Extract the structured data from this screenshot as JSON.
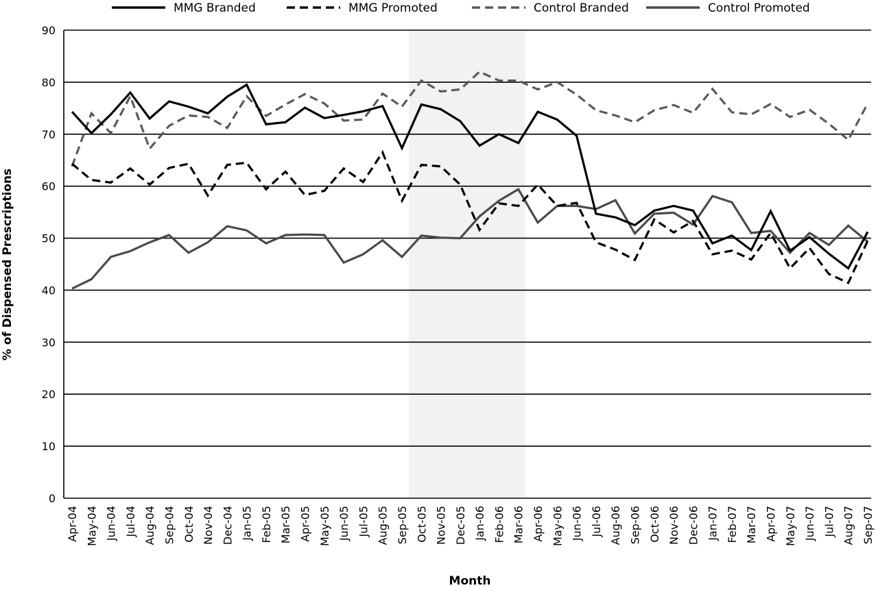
{
  "chart_data": {
    "type": "line",
    "xlabel": "Month",
    "ylabel": "% of Dispensed Prescriptions",
    "ylim": [
      0,
      90
    ],
    "yticks": [
      0,
      10,
      20,
      30,
      40,
      50,
      60,
      70,
      80,
      90
    ],
    "grid": "horizontal",
    "legend_position": "top",
    "shaded_region": {
      "from": "Sep-05",
      "to": "Mar-06",
      "color": "#f2f2f2"
    },
    "categories": [
      "Apr-04",
      "May-04",
      "Jun-04",
      "Jul-04",
      "Aug-04",
      "Sep-04",
      "Oct-04",
      "Nov-04",
      "Dec-04",
      "Jan-05",
      "Feb-05",
      "Mar-05",
      "Apr-05",
      "May-05",
      "Jun-05",
      "Jul-05",
      "Aug-05",
      "Sep-05",
      "Oct-05",
      "Nov-05",
      "Dec-05",
      "Jan-06",
      "Feb-06",
      "Mar-06",
      "Apr-06",
      "May-06",
      "Jun-06",
      "Jul-06",
      "Aug-06",
      "Sep-06",
      "Oct-06",
      "Nov-06",
      "Dec-06",
      "Jan-07",
      "Feb-07",
      "Mar-07",
      "Apr-07",
      "May-07",
      "Jun-07",
      "Jul-07",
      "Aug-07",
      "Sep-07"
    ],
    "series": [
      {
        "name": "MMG Branded",
        "color": "#000000",
        "dash": "solid",
        "values": [
          74.3,
          70.2,
          73.8,
          78.0,
          73.0,
          76.3,
          75.3,
          74.0,
          77.2,
          79.5,
          71.9,
          72.3,
          75.1,
          73.1,
          73.7,
          74.4,
          75.4,
          67.3,
          75.7,
          74.8,
          72.5,
          67.8,
          70.0,
          68.3,
          74.3,
          72.8,
          69.7,
          54.7,
          54.0,
          52.5,
          55.3,
          56.2,
          55.3,
          49.0,
          50.5,
          47.7,
          55.2,
          47.6,
          50.2,
          47.0,
          44.2,
          51.2
        ]
      },
      {
        "name": "MMG Promoted",
        "color": "#000000",
        "dash": "dashed",
        "values": [
          64.3,
          61.2,
          60.7,
          63.4,
          60.3,
          63.5,
          64.3,
          58.2,
          64.1,
          64.5,
          59.4,
          62.8,
          58.3,
          59.1,
          63.4,
          60.8,
          66.5,
          57.2,
          64.1,
          63.8,
          60.3,
          51.6,
          56.7,
          56.2,
          60.3,
          56.2,
          56.8,
          49.2,
          47.8,
          45.8,
          53.6,
          51.1,
          53.3,
          46.9,
          47.6,
          45.9,
          51.0,
          44.2,
          48.1,
          43.1,
          41.4,
          49.5
        ]
      },
      {
        "name": "Control Branded",
        "color": "#5a5a5a",
        "dash": "dashed",
        "values": [
          63.8,
          74.0,
          70.2,
          77.3,
          67.2,
          71.6,
          73.6,
          73.3,
          71.2,
          77.3,
          73.5,
          75.7,
          77.7,
          75.9,
          72.6,
          72.8,
          77.8,
          75.3,
          80.3,
          78.2,
          78.6,
          82.0,
          80.3,
          80.3,
          78.6,
          80.0,
          77.6,
          74.6,
          73.6,
          72.3,
          74.6,
          75.6,
          74.1,
          78.7,
          74.2,
          73.8,
          75.8,
          73.3,
          74.7,
          72.0,
          68.9,
          75.9
        ]
      },
      {
        "name": "Control Promoted",
        "color": "#4a4a4a",
        "dash": "solid",
        "values": [
          40.3,
          42.1,
          46.4,
          47.5,
          49.2,
          50.6,
          47.2,
          49.2,
          52.3,
          51.5,
          49.0,
          50.6,
          50.7,
          50.6,
          45.3,
          46.9,
          49.6,
          46.4,
          50.5,
          50.1,
          50.0,
          54.2,
          57.2,
          59.4,
          53.0,
          56.2,
          56.2,
          55.6,
          57.3,
          50.9,
          54.7,
          54.9,
          52.6,
          58.1,
          56.9,
          51.0,
          51.4,
          47.2,
          51.0,
          48.7,
          52.4,
          49.3
        ]
      }
    ]
  }
}
